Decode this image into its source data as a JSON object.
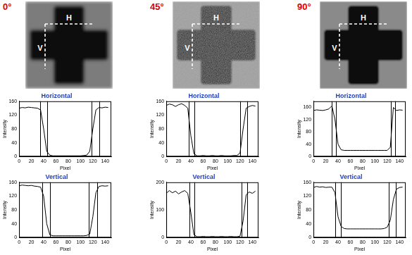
{
  "panels": [
    {
      "title": "0°",
      "image_labels": {
        "horizontal": "H",
        "vertical": "V"
      }
    },
    {
      "title": "45°",
      "image_labels": {
        "horizontal": "H",
        "vertical": "V"
      }
    },
    {
      "title": "90°",
      "image_labels": {
        "horizontal": "H",
        "vertical": "V"
      }
    }
  ],
  "chart_data": [
    {
      "type": "line",
      "title": "Horizontal",
      "x_label": "Pixel",
      "y_label": "Intensity",
      "color": "#000000",
      "grid": false,
      "x": [
        0,
        5,
        10,
        15,
        20,
        25,
        30,
        35,
        40,
        45,
        50,
        55,
        60,
        65,
        70,
        75,
        80,
        85,
        90,
        95,
        100,
        105,
        110,
        115,
        120,
        125,
        130,
        135,
        140,
        145
      ],
      "values": [
        140,
        142,
        141,
        143,
        142,
        141,
        140,
        135,
        80,
        15,
        4,
        2,
        2,
        2,
        2,
        2,
        2,
        2,
        2,
        2,
        2,
        3,
        4,
        15,
        80,
        135,
        142,
        141,
        143,
        142
      ],
      "vlines": [
        34,
        46,
        118,
        130
      ],
      "xlim": [
        0,
        150
      ],
      "xticks": [
        0,
        20,
        40,
        60,
        80,
        100,
        120,
        140
      ],
      "ylim": [
        0,
        160
      ],
      "yticks": [
        0,
        40,
        80,
        120,
        160
      ]
    },
    {
      "type": "line",
      "title": "Vertical",
      "x_label": "Pixel",
      "y_label": "Intensity",
      "color": "#000000",
      "grid": false,
      "x": [
        0,
        5,
        10,
        15,
        20,
        25,
        30,
        35,
        40,
        45,
        50,
        55,
        60,
        65,
        70,
        75,
        80,
        85,
        90,
        95,
        100,
        105,
        110,
        115,
        120,
        125,
        130,
        135,
        140,
        145
      ],
      "values": [
        150,
        152,
        151,
        150,
        151,
        149,
        148,
        146,
        120,
        40,
        8,
        5,
        5,
        5,
        5,
        5,
        5,
        5,
        5,
        5,
        5,
        5,
        6,
        10,
        60,
        130,
        148,
        150,
        149,
        150
      ],
      "vlines": [
        38,
        50,
        113,
        127
      ],
      "xlim": [
        0,
        150
      ],
      "xticks": [
        0,
        20,
        40,
        60,
        80,
        100,
        120,
        140
      ],
      "ylim": [
        0,
        160
      ],
      "yticks": [
        0,
        40,
        80,
        120,
        160
      ]
    },
    {
      "type": "line",
      "title": "Horizontal",
      "x_label": "Pixel",
      "y_label": "Intensity",
      "color": "#000000",
      "grid": false,
      "x": [
        0,
        5,
        10,
        15,
        20,
        25,
        30,
        35,
        40,
        45,
        50,
        55,
        60,
        65,
        70,
        75,
        80,
        85,
        90,
        95,
        100,
        105,
        110,
        115,
        120,
        125,
        130,
        135,
        140,
        145
      ],
      "values": [
        148,
        152,
        150,
        145,
        150,
        153,
        148,
        140,
        60,
        8,
        2,
        2,
        3,
        2,
        2,
        3,
        2,
        2,
        3,
        2,
        2,
        2,
        3,
        3,
        10,
        80,
        140,
        145,
        148,
        146
      ],
      "vlines": [
        36,
        46,
        120,
        132
      ],
      "xlim": [
        0,
        150
      ],
      "xticks": [
        0,
        20,
        40,
        60,
        80,
        100,
        120,
        140
      ],
      "ylim": [
        0,
        160
      ],
      "yticks": [
        0,
        40,
        80,
        120,
        160
      ]
    },
    {
      "type": "line",
      "title": "Vertical",
      "x_label": "Pixel",
      "y_label": "Intensity",
      "color": "#000000",
      "grid": false,
      "x": [
        0,
        5,
        10,
        15,
        20,
        25,
        30,
        35,
        40,
        45,
        50,
        55,
        60,
        65,
        70,
        75,
        80,
        85,
        90,
        95,
        100,
        105,
        110,
        115,
        120,
        125,
        130,
        135,
        140,
        145
      ],
      "values": [
        160,
        170,
        162,
        168,
        158,
        165,
        170,
        160,
        90,
        10,
        3,
        3,
        4,
        3,
        3,
        4,
        3,
        3,
        4,
        3,
        3,
        4,
        3,
        3,
        5,
        60,
        155,
        165,
        160,
        168
      ],
      "vlines": [
        38,
        46,
        122,
        132
      ],
      "xlim": [
        0,
        150
      ],
      "xticks": [
        0,
        20,
        40,
        60,
        80,
        100,
        120,
        140
      ],
      "ylim": [
        0,
        200
      ],
      "yticks": [
        0,
        100,
        200
      ]
    },
    {
      "type": "line",
      "title": "Horizontal",
      "x_label": "Pixel",
      "y_label": "Intensity",
      "color": "#000000",
      "grid": false,
      "x": [
        0,
        5,
        10,
        15,
        20,
        25,
        30,
        35,
        40,
        45,
        50,
        55,
        60,
        65,
        70,
        75,
        80,
        85,
        90,
        95,
        100,
        105,
        110,
        115,
        120,
        125,
        130,
        135,
        140,
        145
      ],
      "values": [
        150,
        152,
        151,
        150,
        152,
        155,
        165,
        120,
        40,
        22,
        20,
        20,
        20,
        20,
        20,
        20,
        20,
        20,
        20,
        20,
        20,
        20,
        20,
        20,
        20,
        30,
        160,
        150,
        152,
        151
      ],
      "vlines": [
        30,
        37,
        126,
        133
      ],
      "xlim": [
        0,
        150
      ],
      "xticks": [
        0,
        20,
        40,
        60,
        80,
        100,
        120,
        140
      ],
      "ylim": [
        0,
        180
      ],
      "yticks": [
        0,
        40,
        80,
        120,
        160
      ]
    },
    {
      "type": "line",
      "title": "Vertical",
      "x_label": "Pixel",
      "y_label": "Intensity",
      "color": "#000000",
      "grid": false,
      "x": [
        0,
        5,
        10,
        15,
        20,
        25,
        30,
        35,
        40,
        45,
        50,
        55,
        60,
        65,
        70,
        75,
        80,
        85,
        90,
        95,
        100,
        105,
        110,
        115,
        120,
        125,
        130,
        135,
        140,
        145
      ],
      "values": [
        145,
        148,
        146,
        147,
        145,
        146,
        146,
        130,
        60,
        32,
        26,
        25,
        25,
        25,
        25,
        25,
        25,
        25,
        25,
        25,
        25,
        25,
        25,
        26,
        30,
        50,
        110,
        140,
        145,
        146
      ],
      "vlines": [
        35,
        45,
        122,
        134
      ],
      "xlim": [
        0,
        150
      ],
      "xticks": [
        0,
        20,
        40,
        60,
        80,
        100,
        120,
        140
      ],
      "ylim": [
        0,
        160
      ],
      "yticks": [
        0,
        40,
        80,
        120,
        160
      ]
    }
  ]
}
